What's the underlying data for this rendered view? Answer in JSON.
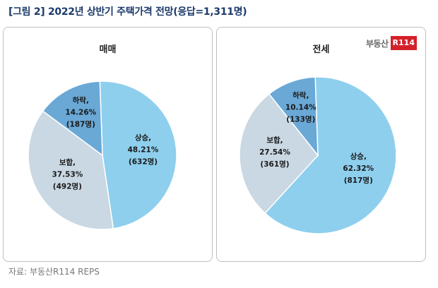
{
  "figure_title": "[그림 2] 2022년 상반기 주택가격 전망(응답=1,311명)",
  "source": "자료: 부동산R114 REPS",
  "logo": {
    "text": "부동산",
    "box": "R114"
  },
  "colors": {
    "up": "#8ecfee",
    "hold": "#c9d8e3",
    "down": "#6aa8d6",
    "border": "#bfbfbf"
  },
  "chart_data": [
    {
      "type": "pie",
      "title": "매매",
      "slices": [
        {
          "label": "상승,",
          "percent": 48.21,
          "percent_text": "48.21%",
          "count_text": "(632명)",
          "color": "#8ecfee"
        },
        {
          "label": "보합,",
          "percent": 37.53,
          "percent_text": "37.53%",
          "count_text": "(492명)",
          "color": "#c9d8e3"
        },
        {
          "label": "하락,",
          "percent": 14.26,
          "percent_text": "14.26%",
          "count_text": "(187명)",
          "color": "#6aa8d6"
        }
      ]
    },
    {
      "type": "pie",
      "title": "전세",
      "slices": [
        {
          "label": "상승,",
          "percent": 62.32,
          "percent_text": "62.32%",
          "count_text": "(817명)",
          "color": "#8ecfee"
        },
        {
          "label": "보합,",
          "percent": 27.54,
          "percent_text": "27.54%",
          "count_text": "(361명)",
          "color": "#c9d8e3"
        },
        {
          "label": "하락,",
          "percent": 10.14,
          "percent_text": "10.14%",
          "count_text": "(133명)",
          "color": "#6aa8d6"
        }
      ]
    }
  ]
}
